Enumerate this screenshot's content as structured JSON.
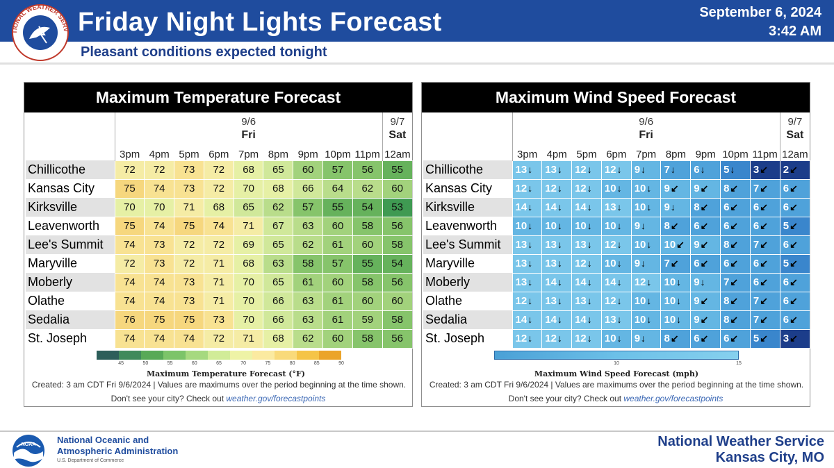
{
  "header": {
    "title": "Friday Night Lights Forecast",
    "subtitle": "Pleasant conditions expected tonight",
    "date": "September 6, 2024",
    "time": "3:42 AM",
    "logo_text": "NATIONAL WEATHER SERVICE"
  },
  "footer": {
    "noaa_line1": "National Oceanic and",
    "noaa_line2": "Atmospheric Administration",
    "noaa_line3": "U.S. Department of Commerce",
    "noaa_logo_text": "NOAA",
    "nws_line1": "National Weather Service",
    "nws_line2": "Kansas City, MO"
  },
  "colors": {
    "header_bg": "#1f4c9e",
    "temp_scale": [
      "#2d5e5a",
      "#3f8a5b",
      "#58a957",
      "#7cc469",
      "#a6d97f",
      "#d1ec98",
      "#eef3a6",
      "#fbeaa0",
      "#f9da7a",
      "#f5c447",
      "#eba42a"
    ],
    "wind_scale": [
      "#1c3d8a",
      "#2a63b5",
      "#3a86cc",
      "#4fa2da",
      "#64b6e3",
      "#7ac6ea"
    ]
  },
  "chart_data": [
    {
      "type": "heatmap",
      "title": "Maximum Temperature Forecast",
      "legend_title": "Maximum Temperature Forecast (°F)",
      "legend_ticks": [
        45,
        50,
        55,
        60,
        65,
        70,
        75,
        80,
        85,
        90
      ],
      "legend_range": [
        40,
        90
      ],
      "day_groups": [
        {
          "date": "9/6",
          "day": "Fri",
          "span": 9
        },
        {
          "date": "9/7",
          "day": "Sat",
          "span": 1
        }
      ],
      "columns": [
        "3pm",
        "4pm",
        "5pm",
        "6pm",
        "7pm",
        "8pm",
        "9pm",
        "10pm",
        "11pm",
        "12am"
      ],
      "rows": [
        {
          "city": "Chillicothe",
          "values": [
            72,
            72,
            73,
            72,
            68,
            65,
            60,
            57,
            56,
            55
          ]
        },
        {
          "city": "Kansas City",
          "values": [
            75,
            74,
            73,
            72,
            70,
            68,
            66,
            64,
            62,
            60
          ]
        },
        {
          "city": "Kirksville",
          "values": [
            70,
            70,
            71,
            68,
            65,
            62,
            57,
            55,
            54,
            53
          ]
        },
        {
          "city": "Leavenworth",
          "values": [
            75,
            74,
            75,
            74,
            71,
            67,
            63,
            60,
            58,
            56
          ]
        },
        {
          "city": "Lee's Summit",
          "values": [
            74,
            73,
            72,
            72,
            69,
            65,
            62,
            61,
            60,
            58
          ]
        },
        {
          "city": "Maryville",
          "values": [
            72,
            73,
            72,
            71,
            68,
            63,
            58,
            57,
            55,
            54
          ]
        },
        {
          "city": "Moberly",
          "values": [
            74,
            74,
            73,
            71,
            70,
            65,
            61,
            60,
            58,
            56
          ]
        },
        {
          "city": "Olathe",
          "values": [
            74,
            74,
            73,
            71,
            70,
            66,
            63,
            61,
            60,
            60
          ]
        },
        {
          "city": "Sedalia",
          "values": [
            76,
            75,
            75,
            73,
            70,
            66,
            63,
            61,
            59,
            58
          ]
        },
        {
          "city": "St. Joseph",
          "values": [
            74,
            74,
            74,
            72,
            71,
            68,
            62,
            60,
            58,
            56
          ]
        }
      ],
      "created": "Created: 3 am CDT Fri 9/6/2024  |  Values are maximums over the period beginning at the time shown.",
      "see_city": "Don't see your city? Check out",
      "link": "weather.gov/forecastpoints"
    },
    {
      "type": "heatmap",
      "title": "Maximum Wind Speed Forecast",
      "legend_title": "Maximum Wind Speed Forecast (mph)",
      "legend_ticks": [
        10,
        15
      ],
      "legend_range": [
        0,
        20
      ],
      "day_groups": [
        {
          "date": "9/6",
          "day": "Fri",
          "span": 9
        },
        {
          "date": "9/7",
          "day": "Sat",
          "span": 1
        }
      ],
      "columns": [
        "3pm",
        "4pm",
        "5pm",
        "6pm",
        "7pm",
        "8pm",
        "9pm",
        "10pm",
        "11pm",
        "12am"
      ],
      "rows": [
        {
          "city": "Chillicothe",
          "values": [
            13,
            13,
            12,
            12,
            9,
            7,
            6,
            5,
            3,
            2
          ],
          "dirs": [
            "S",
            "S",
            "S",
            "S",
            "S",
            "S",
            "S",
            "S",
            "SW",
            "SW"
          ]
        },
        {
          "city": "Kansas City",
          "values": [
            12,
            12,
            12,
            10,
            10,
            9,
            9,
            8,
            7,
            6
          ],
          "dirs": [
            "S",
            "S",
            "S",
            "S",
            "S",
            "SW",
            "SW",
            "SW",
            "SW",
            "SW"
          ]
        },
        {
          "city": "Kirksville",
          "values": [
            14,
            14,
            14,
            13,
            10,
            9,
            8,
            6,
            6,
            6
          ],
          "dirs": [
            "S",
            "S",
            "S",
            "S",
            "S",
            "S",
            "SW",
            "SW",
            "SW",
            "SW"
          ]
        },
        {
          "city": "Leavenworth",
          "values": [
            10,
            10,
            10,
            10,
            9,
            8,
            6,
            6,
            6,
            5
          ],
          "dirs": [
            "S",
            "S",
            "S",
            "S",
            "S",
            "SW",
            "SW",
            "SW",
            "SW",
            "SW"
          ]
        },
        {
          "city": "Lee's Summit",
          "values": [
            13,
            13,
            13,
            12,
            10,
            10,
            9,
            8,
            7,
            6
          ],
          "dirs": [
            "S",
            "S",
            "S",
            "S",
            "S",
            "SW",
            "SW",
            "SW",
            "SW",
            "SW"
          ]
        },
        {
          "city": "Maryville",
          "values": [
            13,
            13,
            12,
            10,
            9,
            7,
            6,
            6,
            6,
            5
          ],
          "dirs": [
            "S",
            "S",
            "S",
            "S",
            "S",
            "SW",
            "SW",
            "SW",
            "SW",
            "SW"
          ]
        },
        {
          "city": "Moberly",
          "values": [
            13,
            14,
            14,
            14,
            12,
            10,
            9,
            7,
            6,
            6
          ],
          "dirs": [
            "S",
            "S",
            "S",
            "S",
            "S",
            "S",
            "S",
            "SW",
            "SW",
            "SW"
          ]
        },
        {
          "city": "Olathe",
          "values": [
            12,
            13,
            13,
            12,
            10,
            10,
            9,
            8,
            7,
            6
          ],
          "dirs": [
            "S",
            "S",
            "S",
            "S",
            "S",
            "S",
            "SW",
            "SW",
            "SW",
            "SW"
          ]
        },
        {
          "city": "Sedalia",
          "values": [
            14,
            14,
            14,
            13,
            10,
            10,
            9,
            8,
            7,
            6
          ],
          "dirs": [
            "S",
            "S",
            "S",
            "S",
            "S",
            "S",
            "SW",
            "SW",
            "SW",
            "SW"
          ]
        },
        {
          "city": "St. Joseph",
          "values": [
            12,
            12,
            12,
            10,
            9,
            8,
            6,
            6,
            5,
            3
          ],
          "dirs": [
            "S",
            "S",
            "S",
            "S",
            "S",
            "SW",
            "SW",
            "SW",
            "SW",
            "SW"
          ]
        }
      ],
      "created": "Created: 3 am CDT Fri 9/6/2024  |  Values are maximums over the period beginning at the time shown.",
      "see_city": "Don't see your city? Check out",
      "link": "weather.gov/forecastpoints"
    }
  ]
}
